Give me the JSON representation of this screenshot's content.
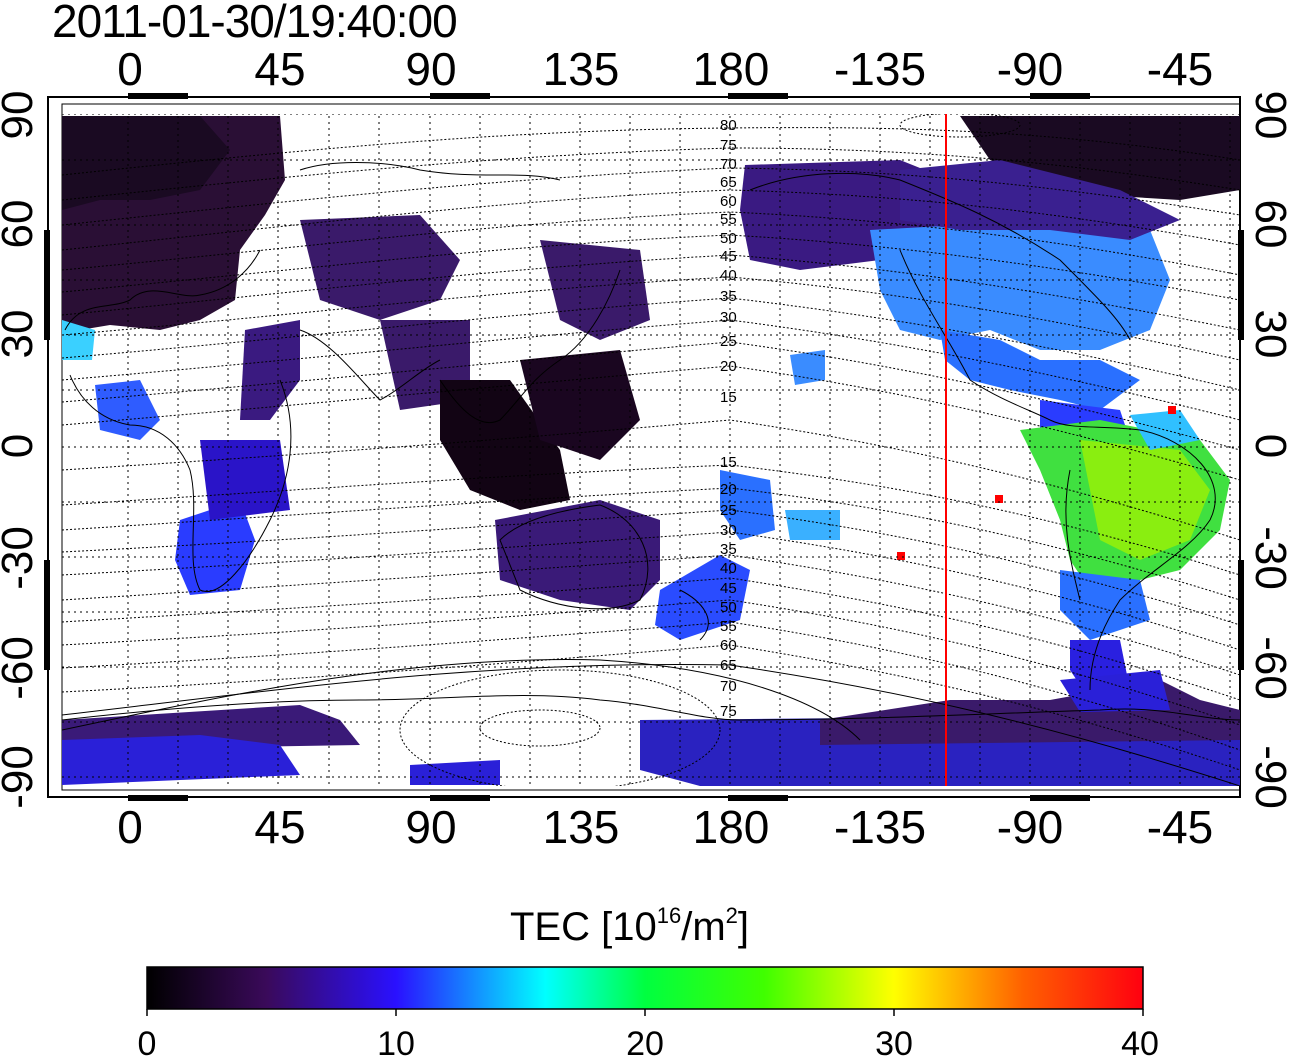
{
  "timestamp": "2011-01-30/19:40:00",
  "map": {
    "top_lon_ticks": [
      "0",
      "45",
      "90",
      "135",
      "180",
      "-135",
      "-90",
      "-45"
    ],
    "bottom_lon_ticks": [
      "0",
      "45",
      "90",
      "135",
      "180",
      "-135",
      "-90",
      "-45"
    ],
    "left_lat_ticks": [
      "90",
      "60",
      "30",
      "0",
      "-30",
      "-60",
      "-90"
    ],
    "right_lat_ticks": [
      "90",
      "60",
      "30",
      "0",
      "-30",
      "-60",
      "-90"
    ],
    "contour_labels": [
      "80",
      "75",
      "70",
      "65",
      "60",
      "55",
      "50",
      "45",
      "40",
      "35",
      "30",
      "25",
      "20",
      "15",
      "15",
      "20",
      "25",
      "30",
      "35",
      "40",
      "45",
      "50",
      "55",
      "60",
      "65",
      "70",
      "75"
    ],
    "colors": {
      "low": "#1c0a1c",
      "mid": "#2a2aff",
      "cyan": "#00ffff",
      "green": "#00ff00",
      "red": "#ff0000",
      "terminator_line": "#ff0000"
    }
  },
  "colorbar": {
    "title_prefix": "TEC  [10",
    "title_exp1": "16",
    "title_mid": "/m",
    "title_exp2": "2",
    "title_suffix": "]",
    "ticks": [
      "0",
      "10",
      "20",
      "30",
      "40"
    ],
    "min": 0,
    "max": 40
  }
}
